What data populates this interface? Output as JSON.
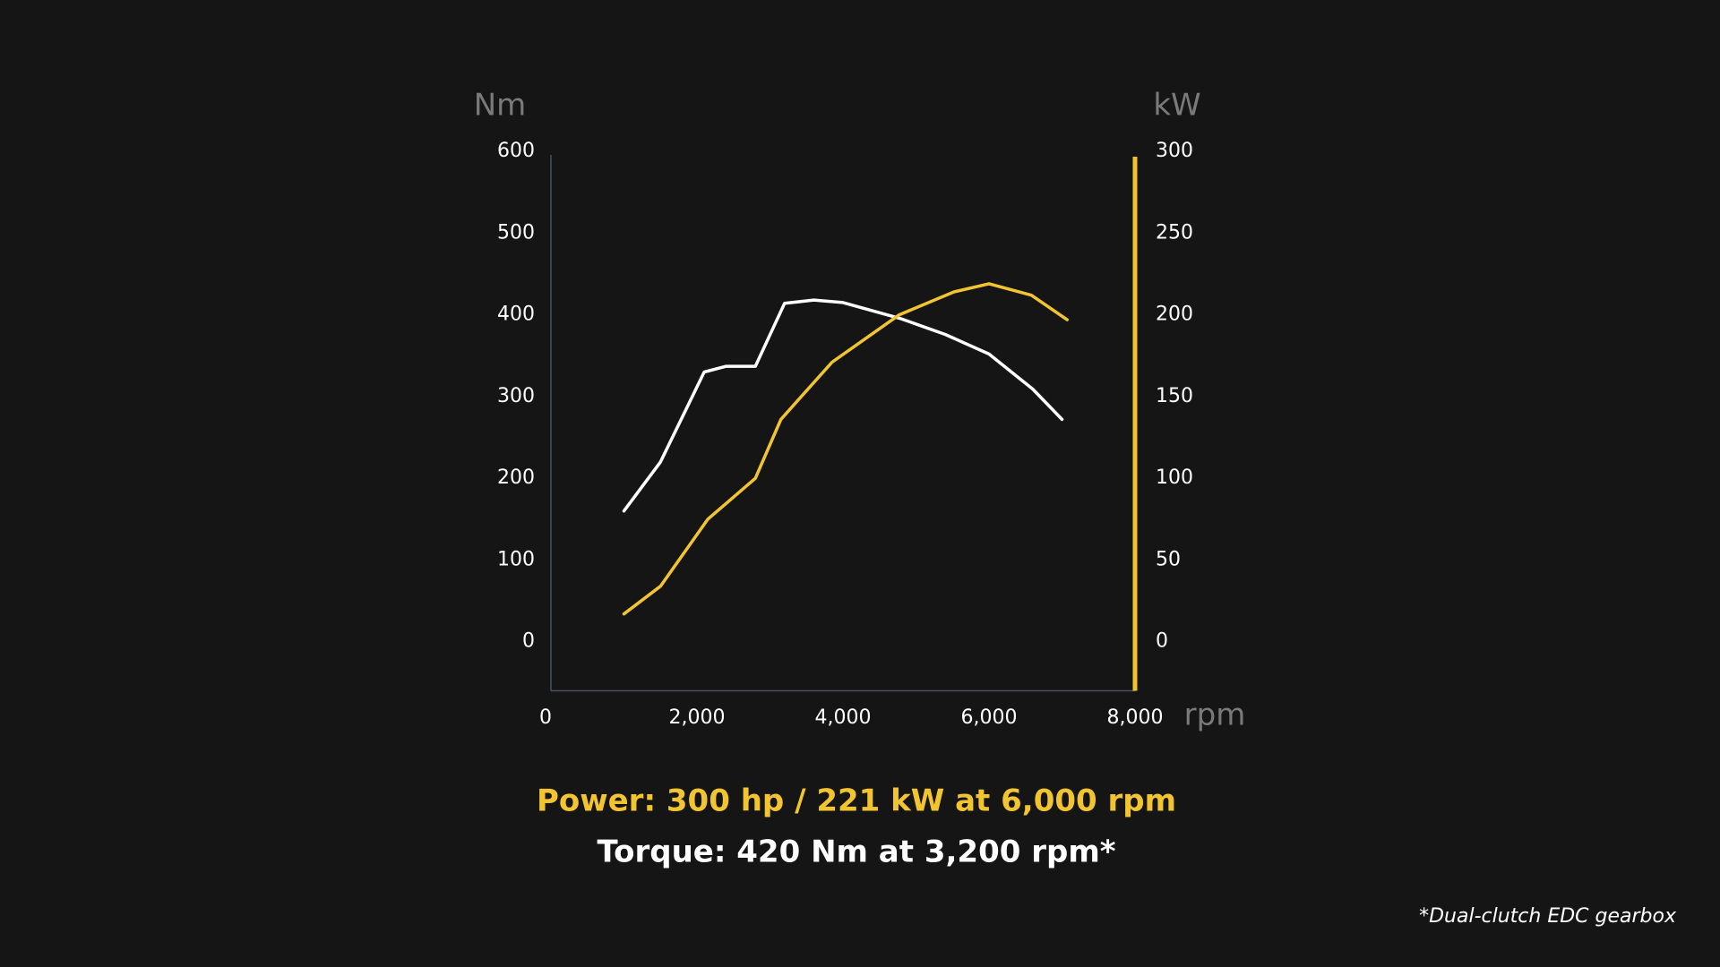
{
  "chart_data": {
    "type": "line",
    "ylabel": "Nm",
    "y2label": "kW",
    "xlabel": "rpm",
    "xlim": [
      0,
      8000
    ],
    "xticks": [
      0,
      {
        "value": 2000,
        "label": "2,000"
      },
      {
        "value": 4000,
        "label": "4,000"
      },
      {
        "value": 6000,
        "label": "6,000"
      },
      {
        "value": 8000,
        "label": "8,000"
      }
    ],
    "ylim": [
      -60,
      600
    ],
    "yticks": [
      0,
      100,
      200,
      300,
      400,
      500,
      600
    ],
    "y2lim": [
      -30,
      300
    ],
    "y2ticks": [
      0,
      50,
      100,
      150,
      200,
      250,
      300
    ],
    "series": [
      {
        "color": "#ffffff",
        "x": [
          1000,
          1500,
          2100,
          2400,
          2800,
          3200,
          3600,
          4000,
          4800,
          5400,
          6000,
          6600,
          7000
        ],
        "values": [
          160,
          220,
          330,
          337,
          337,
          414,
          418,
          415,
          395,
          376,
          352,
          309,
          272
        ]
      },
      {
        "color": "#f2c530",
        "axis": "y2",
        "x": [
          1000,
          1500,
          2150,
          2800,
          3150,
          3850,
          4770,
          5520,
          6000,
          6580,
          7070
        ],
        "values": [
          17,
          34,
          75,
          100,
          136,
          171,
          200,
          214,
          219,
          212,
          197
        ]
      }
    ],
    "power_note": "Power: 300 hp / 221 kW at 6,000 rpm",
    "torque_note": "Torque: 420 Nm at 3,200 rpm*",
    "footnote": "*Dual-clutch EDC gearbox"
  }
}
